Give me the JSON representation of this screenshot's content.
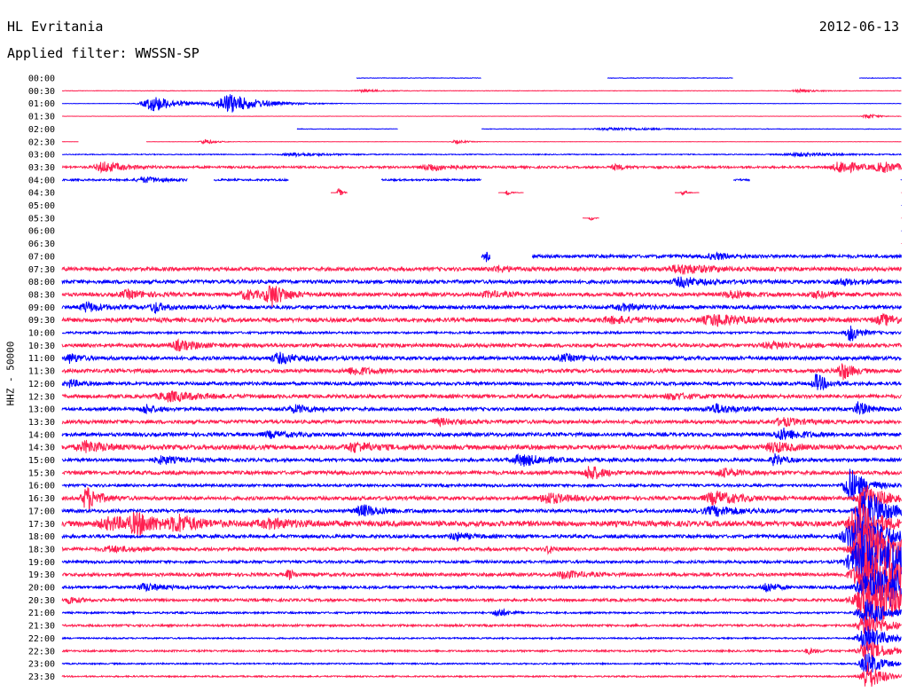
{
  "header": {
    "station": "HL Evritania",
    "date": "2012-06-13",
    "filter": "Applied filter: WWSSN-SP"
  },
  "colors": {
    "trace_a": "#0000ff",
    "trace_b": "#ff2050",
    "background": "#ffffff",
    "text": "#000000"
  },
  "chart_data": {
    "type": "line",
    "subtype": "helicorder",
    "title": "HL Evritania",
    "ylabel": "HHZ - 50000",
    "xlabel": "",
    "x_range_minutes": [
      0,
      30
    ],
    "grid": false,
    "legend": "none",
    "tick_labels": [
      "00:00",
      "00:30",
      "01:00",
      "01:30",
      "02:00",
      "02:30",
      "03:00",
      "03:30",
      "04:00",
      "04:30",
      "05:00",
      "05:30",
      "06:00",
      "06:30",
      "07:00",
      "07:30",
      "08:00",
      "08:30",
      "09:00",
      "09:30",
      "10:00",
      "10:30",
      "11:00",
      "11:30",
      "12:00",
      "12:30",
      "13:00",
      "13:30",
      "14:00",
      "14:30",
      "15:00",
      "15:30",
      "16:00",
      "16:30",
      "17:00",
      "17:30",
      "18:00",
      "18:30",
      "19:00",
      "19:30",
      "20:00",
      "20:30",
      "21:00",
      "21:30",
      "22:00",
      "22:30",
      "23:00",
      "23:30"
    ],
    "series": [
      {
        "start": "00:00",
        "noise": 0.3,
        "gaps": [
          [
            0.0,
            0.35
          ],
          [
            0.5,
            0.65
          ],
          [
            0.8,
            0.95
          ]
        ],
        "events": [
          [
            0.1,
            3,
            0.02
          ],
          [
            0.2,
            2,
            0.015
          ]
        ]
      },
      {
        "start": "00:30",
        "noise": 0.25,
        "gaps": [],
        "events": [
          [
            0.36,
            1.5,
            0.02
          ],
          [
            0.88,
            1.5,
            0.02
          ]
        ]
      },
      {
        "start": "01:00",
        "noise": 0.2,
        "gaps": [],
        "events": [
          [
            0.11,
            9,
            0.025
          ],
          [
            0.2,
            11,
            0.03
          ]
        ]
      },
      {
        "start": "01:30",
        "noise": 0.15,
        "gaps": [],
        "events": [
          [
            0.96,
            3,
            0.01
          ]
        ]
      },
      {
        "start": "02:00",
        "noise": 0.3,
        "gaps": [
          [
            0.0,
            0.28
          ],
          [
            0.4,
            0.5
          ]
        ],
        "events": [
          [
            0.66,
            1.5,
            0.05
          ]
        ]
      },
      {
        "start": "02:30",
        "noise": 0.2,
        "gaps": [
          [
            0.02,
            0.1
          ]
        ],
        "events": [
          [
            0.17,
            3,
            0.01
          ],
          [
            0.47,
            2,
            0.01
          ]
        ]
      },
      {
        "start": "03:00",
        "noise": 0.5,
        "gaps": [],
        "events": [
          [
            0.28,
            2,
            0.03
          ],
          [
            0.88,
            2,
            0.04
          ]
        ]
      },
      {
        "start": "03:30",
        "noise": 1.2,
        "gaps": [],
        "events": [
          [
            0.05,
            6,
            0.02
          ],
          [
            0.44,
            4,
            0.02
          ],
          [
            0.66,
            3,
            0.01
          ],
          [
            0.93,
            7,
            0.02
          ],
          [
            0.98,
            5,
            0.02
          ]
        ]
      },
      {
        "start": "04:00",
        "noise": 1.0,
        "gaps": [
          [
            0.15,
            0.18
          ],
          [
            0.27,
            0.38
          ],
          [
            0.5,
            0.8
          ],
          [
            0.82,
            1.0
          ]
        ],
        "events": [
          [
            0.1,
            3,
            0.02
          ]
        ]
      },
      {
        "start": "04:30",
        "noise": 0.1,
        "gaps": [
          [
            0.0,
            0.32
          ],
          [
            0.34,
            0.52
          ],
          [
            0.55,
            0.73
          ],
          [
            0.76,
            1.0
          ]
        ],
        "events": [
          [
            0.33,
            5,
            0.004
          ],
          [
            0.53,
            4,
            0.004
          ],
          [
            0.74,
            3,
            0.004
          ]
        ]
      },
      {
        "start": "05:00",
        "noise": 0,
        "gaps": [
          [
            0.0,
            1.0
          ]
        ],
        "events": []
      },
      {
        "start": "05:30",
        "noise": 0.1,
        "gaps": [
          [
            0.0,
            0.62
          ],
          [
            0.64,
            1.0
          ]
        ],
        "events": [
          [
            0.63,
            3,
            0.003
          ]
        ]
      },
      {
        "start": "06:00",
        "noise": 0,
        "gaps": [
          [
            0.0,
            1.0
          ]
        ],
        "events": []
      },
      {
        "start": "06:30",
        "noise": 0,
        "gaps": [
          [
            0.0,
            1.0
          ]
        ],
        "events": []
      },
      {
        "start": "07:00",
        "noise": 1.8,
        "gaps": [
          [
            0.0,
            0.5
          ],
          [
            0.51,
            0.56
          ]
        ],
        "events": [
          [
            0.505,
            5,
            0.003
          ],
          [
            0.78,
            3,
            0.02
          ]
        ]
      },
      {
        "start": "07:30",
        "noise": 2.0,
        "gaps": [],
        "events": [
          [
            0.52,
            3,
            0.015
          ],
          [
            0.74,
            5,
            0.03
          ]
        ]
      },
      {
        "start": "08:00",
        "noise": 2.0,
        "gaps": [],
        "events": [
          [
            0.74,
            5,
            0.02
          ],
          [
            0.93,
            3,
            0.02
          ]
        ]
      },
      {
        "start": "08:30",
        "noise": 2.0,
        "gaps": [],
        "events": [
          [
            0.08,
            4,
            0.02
          ],
          [
            0.22,
            5,
            0.015
          ],
          [
            0.25,
            12,
            0.015
          ],
          [
            0.51,
            3,
            0.02
          ],
          [
            0.8,
            4,
            0.02
          ],
          [
            0.9,
            3,
            0.02
          ]
        ]
      },
      {
        "start": "09:00",
        "noise": 2.0,
        "gaps": [],
        "events": [
          [
            0.03,
            5,
            0.015
          ],
          [
            0.11,
            6,
            0.01
          ],
          [
            0.67,
            3,
            0.02
          ]
        ]
      },
      {
        "start": "09:30",
        "noise": 2.3,
        "gaps": [],
        "events": [
          [
            0.66,
            3,
            0.03
          ],
          [
            0.78,
            6,
            0.03
          ],
          [
            0.98,
            5,
            0.02
          ]
        ]
      },
      {
        "start": "10:00",
        "noise": 1.2,
        "gaps": [],
        "events": [
          [
            0.94,
            10,
            0.01
          ]
        ]
      },
      {
        "start": "10:30",
        "noise": 2.0,
        "gaps": [],
        "events": [
          [
            0.14,
            5,
            0.02
          ],
          [
            0.85,
            3,
            0.03
          ]
        ]
      },
      {
        "start": "11:00",
        "noise": 2.0,
        "gaps": [],
        "events": [
          [
            0.01,
            5,
            0.01
          ],
          [
            0.26,
            5,
            0.02
          ],
          [
            0.6,
            3,
            0.02
          ]
        ]
      },
      {
        "start": "11:30",
        "noise": 2.0,
        "gaps": [],
        "events": [
          [
            0.35,
            4,
            0.02
          ],
          [
            0.93,
            10,
            0.01
          ]
        ]
      },
      {
        "start": "12:00",
        "noise": 1.8,
        "gaps": [],
        "events": [
          [
            0.01,
            4,
            0.01
          ],
          [
            0.9,
            10,
            0.01
          ]
        ]
      },
      {
        "start": "12:30",
        "noise": 2.0,
        "gaps": [],
        "events": [
          [
            0.13,
            5,
            0.03
          ],
          [
            0.73,
            3,
            0.02
          ]
        ]
      },
      {
        "start": "13:00",
        "noise": 1.8,
        "gaps": [],
        "events": [
          [
            0.1,
            5,
            0.01
          ],
          [
            0.28,
            4,
            0.02
          ],
          [
            0.78,
            5,
            0.02
          ],
          [
            0.95,
            8,
            0.01
          ]
        ]
      },
      {
        "start": "13:30",
        "noise": 2.0,
        "gaps": [],
        "events": [
          [
            0.45,
            3,
            0.02
          ],
          [
            0.86,
            4,
            0.02
          ]
        ]
      },
      {
        "start": "14:00",
        "noise": 2.0,
        "gaps": [],
        "events": [
          [
            0.25,
            3,
            0.02
          ],
          [
            0.86,
            6,
            0.02
          ]
        ]
      },
      {
        "start": "14:30",
        "noise": 2.5,
        "gaps": [],
        "events": [
          [
            0.03,
            6,
            0.02
          ],
          [
            0.35,
            5,
            0.02
          ],
          [
            0.85,
            5,
            0.02
          ]
        ]
      },
      {
        "start": "15:00",
        "noise": 1.8,
        "gaps": [],
        "events": [
          [
            0.12,
            4,
            0.02
          ],
          [
            0.55,
            6,
            0.025
          ],
          [
            0.85,
            6,
            0.01
          ]
        ]
      },
      {
        "start": "15:30",
        "noise": 2.0,
        "gaps": [],
        "events": [
          [
            0.63,
            9,
            0.012
          ],
          [
            0.79,
            4,
            0.02
          ]
        ]
      },
      {
        "start": "16:00",
        "noise": 1.5,
        "gaps": [],
        "events": [
          [
            0.94,
            20,
            0.015
          ]
        ]
      },
      {
        "start": "16:30",
        "noise": 2.0,
        "gaps": [],
        "events": [
          [
            0.03,
            13,
            0.012
          ],
          [
            0.58,
            6,
            0.02
          ],
          [
            0.78,
            7,
            0.025
          ],
          [
            0.96,
            14,
            0.02
          ]
        ]
      },
      {
        "start": "17:00",
        "noise": 1.8,
        "gaps": [],
        "events": [
          [
            0.36,
            6,
            0.02
          ],
          [
            0.78,
            5,
            0.03
          ],
          [
            0.96,
            24,
            0.02
          ]
        ]
      },
      {
        "start": "17:30",
        "noise": 3.0,
        "gaps": [],
        "events": [
          [
            0.06,
            6,
            0.03
          ],
          [
            0.09,
            10,
            0.02
          ],
          [
            0.14,
            8,
            0.02
          ],
          [
            0.25,
            4,
            0.03
          ],
          [
            0.95,
            24,
            0.02
          ]
        ]
      },
      {
        "start": "18:00",
        "noise": 1.8,
        "gaps": [],
        "events": [
          [
            0.47,
            4,
            0.015
          ],
          [
            0.95,
            28,
            0.03
          ]
        ]
      },
      {
        "start": "18:30",
        "noise": 1.8,
        "gaps": [],
        "events": [
          [
            0.06,
            3,
            0.02
          ],
          [
            0.58,
            5,
            0.005
          ],
          [
            0.96,
            30,
            0.03
          ]
        ]
      },
      {
        "start": "19:00",
        "noise": 1.5,
        "gaps": [],
        "events": [
          [
            0.955,
            28,
            0.03
          ],
          [
            0.99,
            14,
            0.02
          ]
        ]
      },
      {
        "start": "19:30",
        "noise": 1.8,
        "gaps": [],
        "events": [
          [
            0.27,
            6,
            0.005
          ],
          [
            0.6,
            4,
            0.02
          ],
          [
            0.96,
            26,
            0.03
          ],
          [
            0.985,
            14,
            0.02
          ]
        ]
      },
      {
        "start": "20:00",
        "noise": 1.5,
        "gaps": [],
        "events": [
          [
            0.1,
            4,
            0.02
          ],
          [
            0.84,
            6,
            0.01
          ],
          [
            0.965,
            22,
            0.03
          ],
          [
            0.99,
            12,
            0.02
          ]
        ]
      },
      {
        "start": "20:30",
        "noise": 1.5,
        "gaps": [],
        "events": [
          [
            0.01,
            4,
            0.01
          ],
          [
            0.96,
            20,
            0.03
          ],
          [
            0.98,
            14,
            0.02
          ]
        ]
      },
      {
        "start": "21:00",
        "noise": 1.0,
        "gaps": [],
        "events": [
          [
            0.52,
            5,
            0.01
          ],
          [
            0.96,
            16,
            0.02
          ]
        ]
      },
      {
        "start": "21:30",
        "noise": 1.2,
        "gaps": [],
        "events": [
          [
            0.96,
            14,
            0.02
          ]
        ]
      },
      {
        "start": "22:00",
        "noise": 0.8,
        "gaps": [],
        "events": [
          [
            0.96,
            14,
            0.02
          ]
        ]
      },
      {
        "start": "22:30",
        "noise": 1.0,
        "gaps": [],
        "events": [
          [
            0.89,
            3,
            0.01
          ],
          [
            0.96,
            12,
            0.02
          ]
        ]
      },
      {
        "start": "23:00",
        "noise": 0.8,
        "gaps": [],
        "events": [
          [
            0.96,
            14,
            0.015
          ]
        ]
      },
      {
        "start": "23:30",
        "noise": 0.8,
        "gaps": [],
        "events": [
          [
            0.96,
            16,
            0.015
          ]
        ]
      }
    ]
  }
}
